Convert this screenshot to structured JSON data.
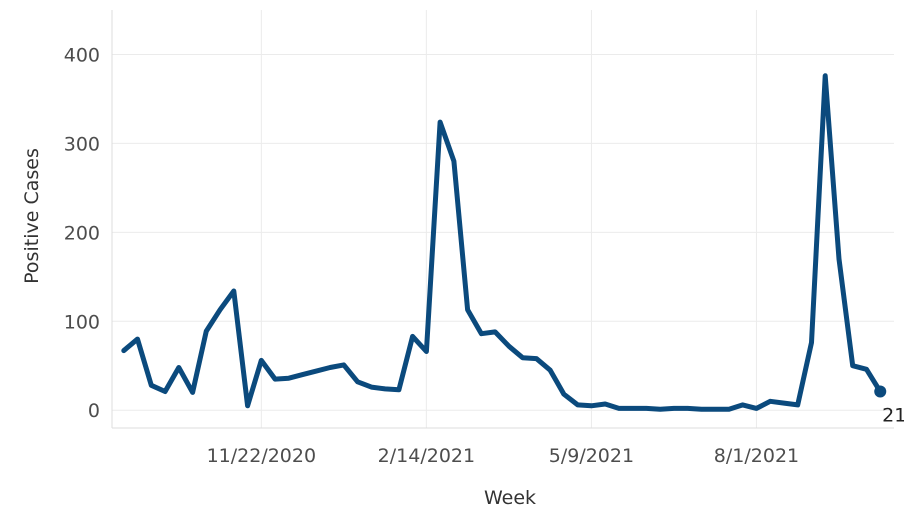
{
  "chart_data": {
    "type": "line",
    "xlabel": "Week",
    "ylabel": "Positive Cases",
    "ylim": [
      -20,
      450
    ],
    "yticks": [
      0,
      100,
      200,
      300,
      400
    ],
    "xlim": [
      "2020-09-07",
      "2021-10-10"
    ],
    "xticks": [
      {
        "date": "2020-11-22",
        "label": "11/22/2020"
      },
      {
        "date": "2021-02-14",
        "label": "2/14/2021"
      },
      {
        "date": "2021-05-09",
        "label": "5/9/2021"
      },
      {
        "date": "2021-08-01",
        "label": "8/1/2021"
      }
    ],
    "grid": true,
    "series": [
      {
        "color": "#0b4a7d",
        "points": [
          [
            "2020-09-13",
            67
          ],
          [
            "2020-09-20",
            80
          ],
          [
            "2020-09-27",
            28
          ],
          [
            "2020-10-04",
            21
          ],
          [
            "2020-10-11",
            48
          ],
          [
            "2020-10-18",
            20
          ],
          [
            "2020-10-25",
            89
          ],
          [
            "2020-11-01",
            113
          ],
          [
            "2020-11-08",
            134
          ],
          [
            "2020-11-15",
            5
          ],
          [
            "2020-11-22",
            56
          ],
          [
            "2020-11-29",
            35
          ],
          [
            "2020-12-06",
            36
          ],
          [
            "2020-12-13",
            40
          ],
          [
            "2020-12-20",
            44
          ],
          [
            "2020-12-27",
            48
          ],
          [
            "2021-01-03",
            51
          ],
          [
            "2021-01-10",
            32
          ],
          [
            "2021-01-17",
            26
          ],
          [
            "2021-01-24",
            24
          ],
          [
            "2021-01-31",
            23
          ],
          [
            "2021-02-07",
            83
          ],
          [
            "2021-02-14",
            66
          ],
          [
            "2021-02-21",
            324
          ],
          [
            "2021-02-28",
            280
          ],
          [
            "2021-03-07",
            113
          ],
          [
            "2021-03-14",
            86
          ],
          [
            "2021-03-21",
            88
          ],
          [
            "2021-03-28",
            72
          ],
          [
            "2021-04-04",
            59
          ],
          [
            "2021-04-11",
            58
          ],
          [
            "2021-04-18",
            45
          ],
          [
            "2021-04-25",
            18
          ],
          [
            "2021-05-02",
            6
          ],
          [
            "2021-05-09",
            5
          ],
          [
            "2021-05-16",
            7
          ],
          [
            "2021-05-23",
            2
          ],
          [
            "2021-05-30",
            2
          ],
          [
            "2021-06-06",
            2
          ],
          [
            "2021-06-13",
            1
          ],
          [
            "2021-06-20",
            2
          ],
          [
            "2021-06-27",
            2
          ],
          [
            "2021-07-04",
            1
          ],
          [
            "2021-07-11",
            1
          ],
          [
            "2021-07-18",
            1
          ],
          [
            "2021-07-25",
            6
          ],
          [
            "2021-08-01",
            2
          ],
          [
            "2021-08-08",
            10
          ],
          [
            "2021-08-15",
            8
          ],
          [
            "2021-08-22",
            6
          ],
          [
            "2021-08-29",
            76
          ],
          [
            "2021-09-05",
            376
          ],
          [
            "2021-09-12",
            170
          ],
          [
            "2021-09-19",
            50
          ],
          [
            "2021-09-26",
            46
          ],
          [
            "2021-10-03",
            21
          ]
        ]
      }
    ],
    "annotations": [
      {
        "text": "21",
        "date": "2021-10-03",
        "value": 21,
        "position": "below"
      }
    ]
  }
}
